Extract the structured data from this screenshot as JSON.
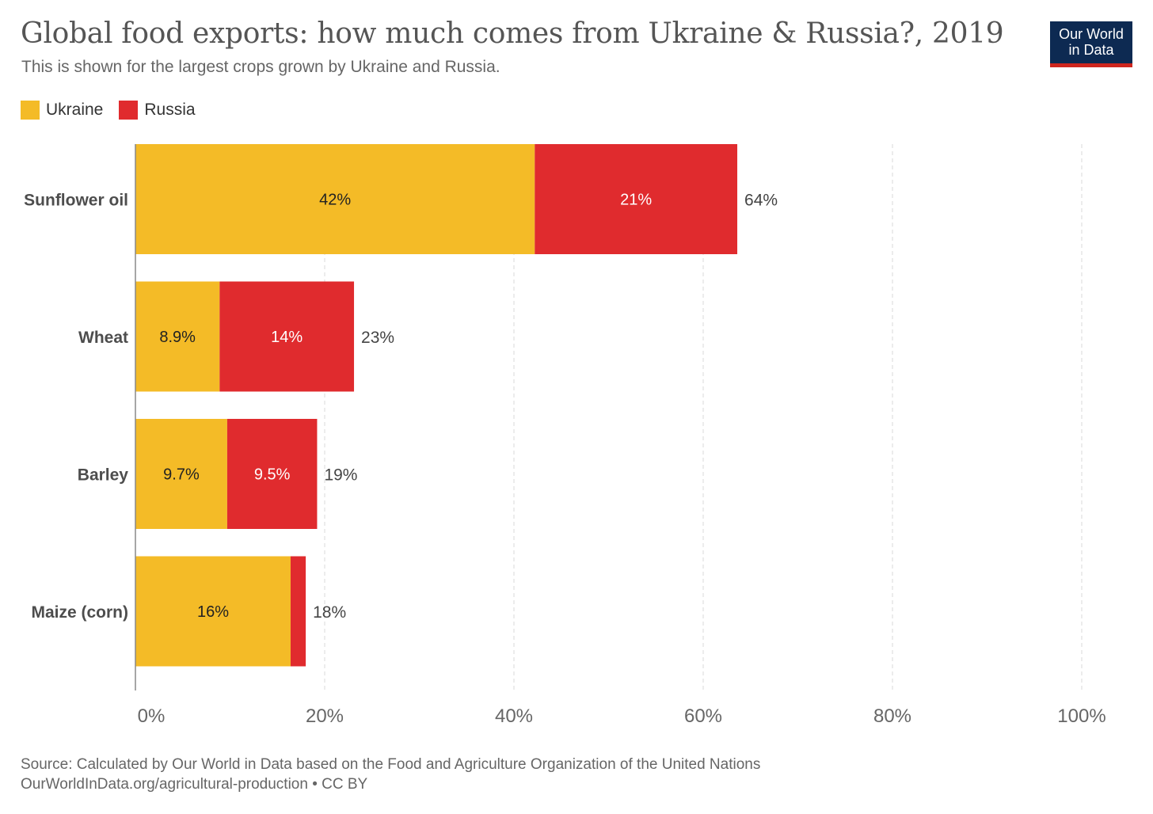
{
  "title": "Global food exports: how much comes from Ukraine & Russia?, 2019",
  "subtitle": "This is shown for the largest crops grown by Ukraine and Russia.",
  "logo": {
    "line1": "Our World",
    "line2": "in Data"
  },
  "colors": {
    "ukraine": "#f4bb27",
    "russia": "#e02b2e",
    "grid": "#d8d8d8",
    "axis": "#888888"
  },
  "chart_data": {
    "type": "bar",
    "orientation": "horizontal",
    "stacked": true,
    "categories": [
      "Sunflower oil",
      "Wheat",
      "Barley",
      "Maize (corn)"
    ],
    "series": [
      {
        "name": "Ukraine",
        "values": [
          42.2,
          8.9,
          9.7,
          16.4
        ],
        "labels": [
          "42%",
          "8.9%",
          "9.7%",
          "16%"
        ]
      },
      {
        "name": "Russia",
        "values": [
          21.4,
          14.2,
          9.5,
          1.6
        ],
        "labels": [
          "21%",
          "14%",
          "9.5%",
          ""
        ]
      }
    ],
    "totals": [
      "64%",
      "23%",
      "19%",
      "18%"
    ],
    "xlim": [
      0,
      100
    ],
    "xticks": [
      0,
      20,
      40,
      60,
      80,
      100
    ],
    "xtick_labels": [
      "0%",
      "20%",
      "40%",
      "60%",
      "80%",
      "100%"
    ],
    "grid": true,
    "legend": "top-left"
  },
  "footer": {
    "source": "Source: Calculated by Our World in Data based on the Food and Agriculture Organization of the United Nations",
    "url": "OurWorldInData.org/agricultural-production • CC BY"
  }
}
